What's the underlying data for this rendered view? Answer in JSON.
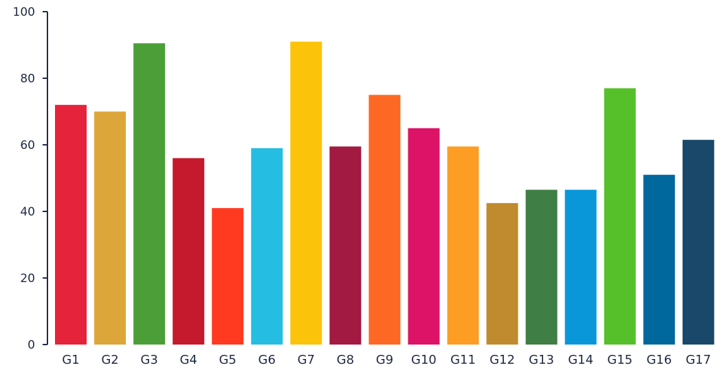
{
  "chart_data": {
    "type": "bar",
    "title": "",
    "xlabel": "",
    "ylabel": "",
    "ylim": [
      0,
      100
    ],
    "yticks": [
      0,
      20,
      40,
      60,
      80,
      100
    ],
    "grid": false,
    "legend": "none",
    "categories": [
      "G1",
      "G2",
      "G3",
      "G4",
      "G5",
      "G6",
      "G7",
      "G8",
      "G9",
      "G10",
      "G11",
      "G12",
      "G13",
      "G14",
      "G15",
      "G16",
      "G17"
    ],
    "values": [
      72,
      70,
      90.5,
      56,
      41,
      59,
      91,
      59.5,
      75,
      65,
      59.5,
      42.5,
      46.5,
      46.5,
      77,
      51,
      61.5
    ],
    "colors": [
      "#e5243b",
      "#dda63a",
      "#4c9f38",
      "#c5192d",
      "#ff3a21",
      "#26bde2",
      "#fcc30b",
      "#a21942",
      "#fd6925",
      "#dd1367",
      "#fd9d24",
      "#bf8b2e",
      "#3f7e44",
      "#0a97d9",
      "#56c02b",
      "#00689d",
      "#19486a"
    ]
  }
}
